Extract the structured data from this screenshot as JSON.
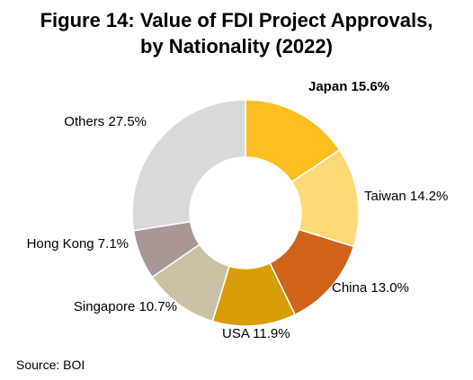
{
  "title_line1": "Figure 14: Value of FDI Project Approvals,",
  "title_line2": "by Nationality (2022)",
  "source": "Source: BOI",
  "chart_data": {
    "type": "pie",
    "title": "Figure 14: Value of FDI Project Approvals, by Nationality (2022)",
    "donut": true,
    "slices": [
      {
        "label": "Japan",
        "value": 15.6,
        "display": "15.6%",
        "color": "#FDBE22",
        "bold": true
      },
      {
        "label": "Taiwan",
        "value": 14.2,
        "display": "14.2%",
        "color": "#FED978",
        "bold": false
      },
      {
        "label": "China",
        "value": 13.0,
        "display": "13.0%",
        "color": "#D1621B",
        "bold": false
      },
      {
        "label": "USA",
        "value": 11.9,
        "display": "11.9%",
        "color": "#D89D06",
        "bold": false
      },
      {
        "label": "Singapore",
        "value": 10.7,
        "display": "10.7%",
        "color": "#C9C2A7",
        "bold": false
      },
      {
        "label": "Hong Kong",
        "value": 7.1,
        "display": "7.1%",
        "color": "#A79895",
        "bold": false
      },
      {
        "label": "Others",
        "value": 27.5,
        "display": "27.5%",
        "color": "#D9D9D9",
        "bold": false
      }
    ]
  }
}
